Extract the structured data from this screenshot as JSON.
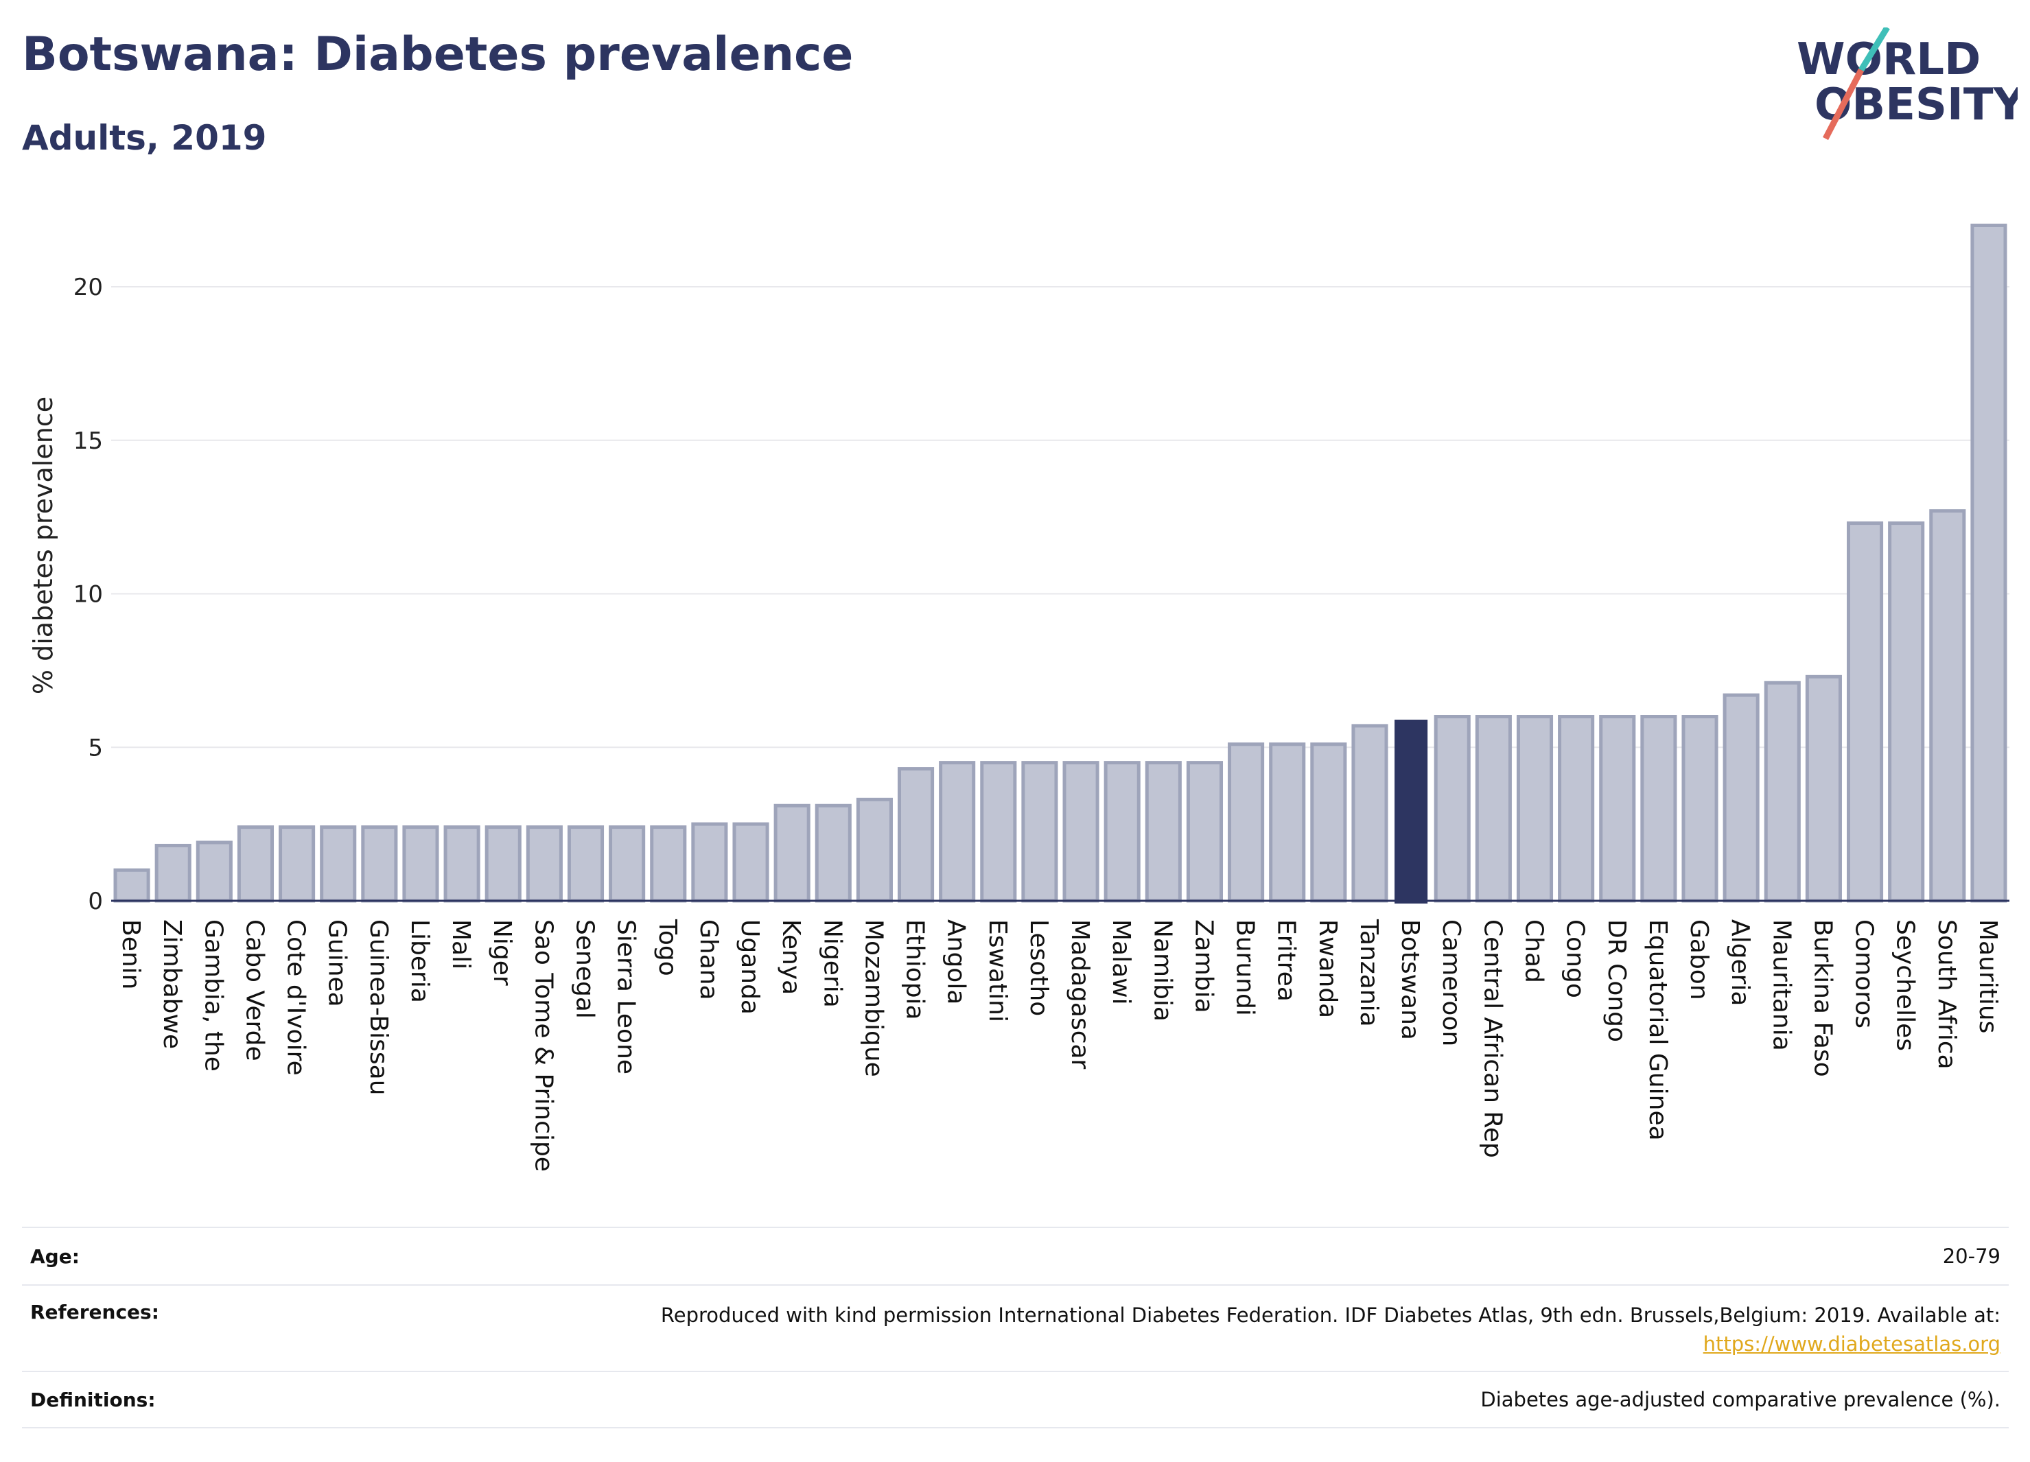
{
  "title": "Botswana: Diabetes prevalence",
  "subtitle": "Adults, 2019",
  "logo": {
    "line1": "WORLD",
    "line2": "OBESITY"
  },
  "chart_data": {
    "type": "bar",
    "ylabel": "% diabetes prevalence",
    "xlabel": "",
    "ylim": [
      0,
      22.5
    ],
    "yticks": [
      0,
      5,
      10,
      15,
      20
    ],
    "grid": true,
    "highlight": "Botswana",
    "colors": {
      "bar": "#c0c4d3",
      "bar_border": "#9ea4ba",
      "highlight": "#2d3561"
    },
    "categories": [
      "Benin",
      "Zimbabwe",
      "Gambia, the",
      "Cabo Verde",
      "Cote d'Ivoire",
      "Guinea",
      "Guinea-Bissau",
      "Liberia",
      "Mali",
      "Niger",
      "Sao Tome & Principe",
      "Senegal",
      "Sierra Leone",
      "Togo",
      "Ghana",
      "Uganda",
      "Kenya",
      "Nigeria",
      "Mozambique",
      "Ethiopia",
      "Angola",
      "Eswatini",
      "Lesotho",
      "Madagascar",
      "Malawi",
      "Namibia",
      "Zambia",
      "Burundi",
      "Eritrea",
      "Rwanda",
      "Tanzania",
      "Botswana",
      "Cameroon",
      "Central African Rep",
      "Chad",
      "Congo",
      "DR Congo",
      "Equatorial Guinea",
      "Gabon",
      "Algeria",
      "Mauritania",
      "Burkina Faso",
      "Comoros",
      "Seychelles",
      "South Africa",
      "Mauritius"
    ],
    "values": [
      1.0,
      1.8,
      1.9,
      2.4,
      2.4,
      2.4,
      2.4,
      2.4,
      2.4,
      2.4,
      2.4,
      2.4,
      2.4,
      2.4,
      2.5,
      2.5,
      3.1,
      3.1,
      3.3,
      4.3,
      4.5,
      4.5,
      4.5,
      4.5,
      4.5,
      4.5,
      4.5,
      5.1,
      5.1,
      5.1,
      5.7,
      5.9,
      6.0,
      6.0,
      6.0,
      6.0,
      6.0,
      6.0,
      6.0,
      6.7,
      7.1,
      7.3,
      12.3,
      12.3,
      12.7,
      22.0
    ]
  },
  "table": {
    "age_label": "Age:",
    "age_value": "20-79",
    "references_label": "References:",
    "references_text": "Reproduced with kind permission International Diabetes Federation. IDF Diabetes Atlas, 9th edn. Brussels,Belgium: 2019. Available at:",
    "references_link": "https://www.diabetesatlas.org",
    "definitions_label": "Definitions:",
    "definitions_value": "Diabetes age-adjusted comparative prevalence (%)."
  }
}
